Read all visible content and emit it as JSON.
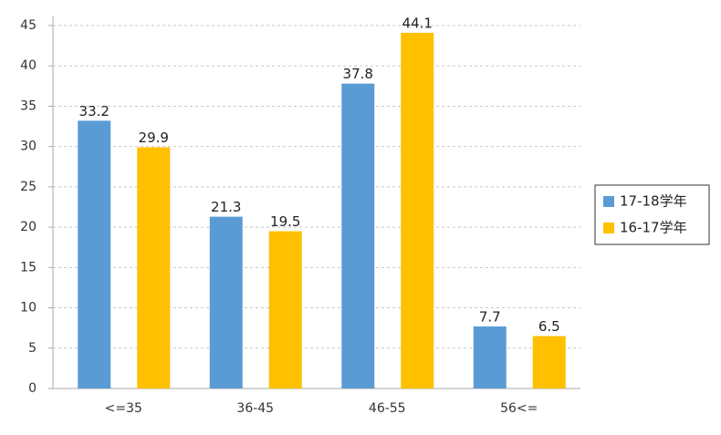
{
  "chart_data": {
    "type": "bar",
    "categories": [
      "<=35",
      "36-45",
      "46-55",
      "56<="
    ],
    "series": [
      {
        "name": "17-18学年",
        "color": "#5b9bd5",
        "values": [
          33.2,
          21.3,
          37.8,
          7.7
        ]
      },
      {
        "name": "16-17学年",
        "color": "#ffc000",
        "values": [
          29.9,
          19.5,
          44.1,
          6.5
        ]
      }
    ],
    "ylim": [
      0,
      45
    ],
    "yticks": [
      0,
      5,
      10,
      15,
      20,
      25,
      30,
      35,
      40,
      45
    ],
    "grid": true,
    "legend": "right"
  }
}
